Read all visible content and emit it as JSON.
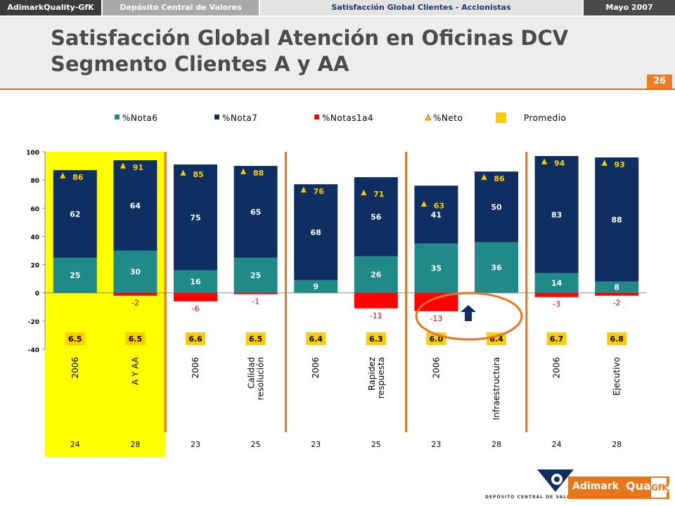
{
  "topbar": {
    "brand": "AdimarkQuality-GfK",
    "client": "Depósito Central de Valores",
    "study": "Satisfacción Global Clientes - Accionistas",
    "date": "Mayo 2007"
  },
  "title_line1": "Satisfacción Global Atención en Oficinas DCV",
  "title_line2": "Segmento Clientes A y AA",
  "page_number": "26",
  "logo": {
    "adimark": "Adimark",
    "quality": "Quality",
    "gfk": "GfK",
    "dcv": "DEPÓSITO CENTRAL DE VALORES"
  },
  "chart_data": {
    "type": "bar",
    "categories": [
      "2006",
      "A Y AA",
      "2006",
      "Calidad resolución",
      "2006",
      "Rapidez respuesta",
      "2006",
      "Infraestructura",
      "2006",
      "Ejecutivo"
    ],
    "category_lines": [
      [
        "2006"
      ],
      [
        "A Y AA"
      ],
      [
        "2006"
      ],
      [
        "Calidad",
        "resolución"
      ],
      [
        "2006"
      ],
      [
        "Rapidez",
        "respuesta"
      ],
      [
        "2006"
      ],
      [
        "Infraestructura"
      ],
      [
        "2006"
      ],
      [
        "Ejecutivo"
      ]
    ],
    "series": [
      {
        "name": "%Nota6",
        "color": "#1f8a87",
        "values": [
          25,
          30,
          16,
          25,
          9,
          26,
          35,
          36,
          14,
          8
        ]
      },
      {
        "name": "%Nota7",
        "color": "#0f2f63",
        "values": [
          62,
          64,
          75,
          65,
          68,
          56,
          41,
          50,
          83,
          88
        ]
      },
      {
        "name": "%Notas1a4",
        "color": "#ff0000",
        "values": [
          0,
          -2,
          -6,
          -1,
          0,
          -11,
          -13,
          0,
          -3,
          -2
        ]
      }
    ],
    "neg_labels": [
      "",
      "-2",
      "-6",
      "-1",
      "",
      "-11",
      "-13",
      "",
      "-3",
      "-2"
    ],
    "neto": {
      "name": "%Neto",
      "values": [
        86,
        91,
        85,
        88,
        76,
        71,
        63,
        86,
        94,
        93
      ]
    },
    "promedio": {
      "name": "Promedio",
      "color": "#ffcc00",
      "values": [
        "6.5",
        "6.5",
        "6.6",
        "6.5",
        "6.4",
        "6.3",
        "6.0",
        "6.4",
        "6.7",
        "6.8"
      ]
    },
    "base_counts": [
      "24",
      "28",
      "23",
      "25",
      "23",
      "25",
      "23",
      "28",
      "24",
      "28"
    ],
    "yticks": [
      "100",
      "80",
      "60",
      "40",
      "20",
      "0",
      "-20",
      "-40"
    ],
    "ylim": [
      -40,
      100
    ],
    "highlight_color": "#ffff00",
    "divider_color": "#e8761d"
  }
}
